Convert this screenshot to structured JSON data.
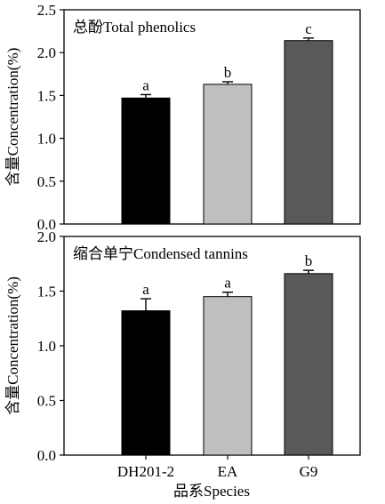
{
  "chart_data": [
    {
      "type": "bar",
      "title": "总酚Total phenolics",
      "xlabel": "",
      "ylabel": "含量Concentration(%)",
      "categories": [
        "DH201-2",
        "EA",
        "G9"
      ],
      "values": [
        1.47,
        1.63,
        2.14
      ],
      "errors": [
        0.04,
        0.03,
        0.03
      ],
      "significance": [
        "a",
        "b",
        "c"
      ],
      "colors": [
        "#000000",
        "#bfbfbf",
        "#595959"
      ],
      "ylim": [
        0,
        2.5
      ],
      "yticks": [
        0.0,
        0.5,
        1.0,
        1.5,
        2.0,
        2.5
      ],
      "ytick_labels": [
        "0.0",
        "0.5",
        "1.0",
        "1.5",
        "2.0",
        "2.5"
      ]
    },
    {
      "type": "bar",
      "title": "缩合单宁Condensed tannins",
      "xlabel": "品系Species",
      "ylabel": "含量Concentration(%)",
      "categories": [
        "DH201-2",
        "EA",
        "G9"
      ],
      "values": [
        1.32,
        1.45,
        1.66
      ],
      "errors": [
        0.11,
        0.04,
        0.03
      ],
      "significance": [
        "a",
        "a",
        "b"
      ],
      "colors": [
        "#000000",
        "#bfbfbf",
        "#595959"
      ],
      "ylim": [
        0,
        2.0
      ],
      "yticks": [
        0.0,
        0.5,
        1.0,
        1.5,
        2.0
      ],
      "ytick_labels": [
        "0.0",
        "0.5",
        "1.0",
        "1.5",
        "2.0"
      ]
    }
  ]
}
